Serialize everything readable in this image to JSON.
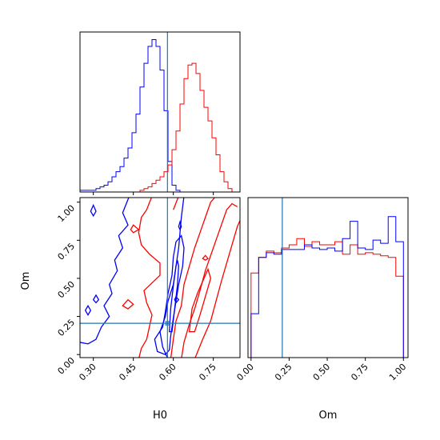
{
  "chart_data": {
    "type": "corner",
    "parameters": [
      "H0",
      "Om"
    ],
    "truth": {
      "H0": 0.578,
      "Om": 0.205
    },
    "truth_color": "#1f77b4",
    "series_colors": {
      "blue": "#0000ff",
      "red": "#ff0000"
    },
    "marginal_H0": {
      "xlim": [
        0.25,
        0.85
      ],
      "xticks": [
        "0.30",
        "0.45",
        "0.60",
        "0.75"
      ],
      "bins": [
        0.25,
        0.265,
        0.28,
        0.295,
        0.31,
        0.325,
        0.34,
        0.355,
        0.37,
        0.385,
        0.4,
        0.415,
        0.43,
        0.445,
        0.46,
        0.475,
        0.49,
        0.505,
        0.52,
        0.535,
        0.55,
        0.565,
        0.58,
        0.595,
        0.61,
        0.625,
        0.64,
        0.655,
        0.67,
        0.685,
        0.7,
        0.715,
        0.73,
        0.745,
        0.76,
        0.775,
        0.79,
        0.805,
        0.82,
        0.835,
        0.85
      ],
      "blue_counts": [
        1,
        1,
        1,
        1,
        2,
        3,
        4,
        6,
        9,
        12,
        15,
        20,
        26,
        35,
        46,
        62,
        76,
        86,
        90,
        86,
        72,
        48,
        18,
        4,
        1,
        0,
        0,
        0,
        0,
        0,
        0,
        0,
        0,
        0,
        0,
        0,
        0,
        0,
        0,
        0
      ],
      "red_counts": [
        0,
        0,
        0,
        0,
        0,
        0,
        0,
        0,
        0,
        0,
        0,
        0,
        0,
        0,
        0,
        1,
        2,
        3,
        5,
        7,
        9,
        12,
        16,
        25,
        36,
        52,
        67,
        75,
        76,
        70,
        60,
        50,
        42,
        32,
        22,
        12,
        6,
        2,
        0,
        0
      ]
    },
    "marginal_Om": {
      "xlim": [
        -0.02,
        1.03
      ],
      "xticks": [
        "0.00",
        "0.25",
        "0.50",
        "0.75",
        "1.00"
      ],
      "bins": [
        0.0,
        0.05,
        0.1,
        0.15,
        0.2,
        0.25,
        0.3,
        0.35,
        0.4,
        0.45,
        0.5,
        0.55,
        0.6,
        0.65,
        0.7,
        0.75,
        0.8,
        0.85,
        0.9,
        0.95,
        1.0
      ],
      "blue_counts": [
        28,
        64,
        67,
        66,
        69,
        69,
        69,
        72,
        70,
        69,
        70,
        68,
        76,
        87,
        70,
        69,
        75,
        73,
        90,
        74
      ],
      "red_counts": [
        54,
        64,
        68,
        67,
        70,
        72,
        76,
        71,
        74,
        72,
        72,
        74,
        66,
        72,
        66,
        67,
        66,
        65,
        64,
        52
      ]
    },
    "joint": {
      "xlabel": "H0",
      "ylabel": "Om",
      "xlim": [
        0.25,
        0.85
      ],
      "ylim": [
        -0.02,
        1.03
      ],
      "xticks": [
        "0.30",
        "0.45",
        "0.60",
        "0.75"
      ],
      "yticks": [
        "0.00",
        "0.25",
        "0.50",
        "0.75",
        "1.00"
      ],
      "contours": "blue and red, three levels each"
    }
  }
}
